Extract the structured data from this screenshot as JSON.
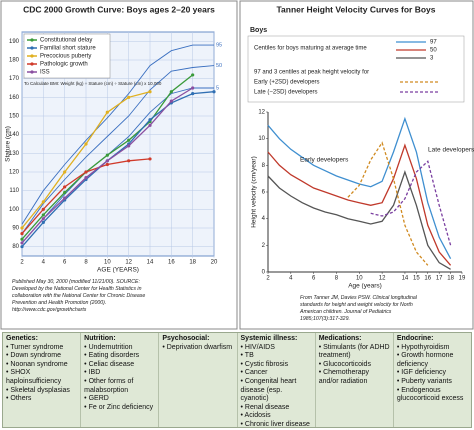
{
  "chart_data": [
    {
      "type": "line",
      "title": "CDC 2000 Growth Curve: Boys ages 2–20 years",
      "x_label": "AGE (YEARS)",
      "y_label": "Stature (cm)",
      "note": "To Calculate BMI: Weight (kg) ÷ Stature (cm) ÷ Stature (cm) x 10,000",
      "source": "Published May 30, 2000 (modified 11/21/00). SOURCE: Developed by the National Center for Health Statistics in collaboration with the National Center for Chronic Disease Prevention and Health Promotion (2000). http://www.cdc.gov/growthcharts",
      "x": [
        2,
        4,
        6,
        8,
        10,
        12,
        14,
        16,
        18,
        20
      ],
      "xlim": [
        2,
        20
      ],
      "xticks": [
        2,
        4,
        6,
        8,
        10,
        12,
        14,
        16,
        18,
        20
      ],
      "ylim": [
        75,
        195
      ],
      "yticks": [
        80,
        90,
        100,
        110,
        120,
        130,
        140,
        150,
        160,
        170,
        180,
        190
      ],
      "grid": true,
      "legend": "upper-left",
      "percentiles": [
        {
          "name": "95",
          "color": "#3a6fc0",
          "values": [
            92,
            110,
            124,
            137,
            149,
            162,
            177,
            185,
            188,
            188
          ]
        },
        {
          "name": "50",
          "color": "#3a6fc0",
          "values": [
            87,
            103,
            116,
            128,
            139,
            150,
            164,
            174,
            176,
            177
          ]
        },
        {
          "name": "5",
          "color": "#3a6fc0",
          "values": [
            82,
            95,
            108,
            120,
            129,
            139,
            152,
            162,
            165,
            165
          ]
        }
      ],
      "series": [
        {
          "name": "Constitutional delay",
          "color": "#3a9a3a",
          "values": [
            84,
            97,
            109,
            120,
            129,
            137,
            147,
            163,
            172,
            null
          ]
        },
        {
          "name": "Familial short stature",
          "color": "#2f6fb3",
          "values": [
            80,
            93,
            105,
            116,
            126,
            135,
            148,
            157,
            162,
            163
          ]
        },
        {
          "name": "Precocious puberty",
          "color": "#e0b020",
          "values": [
            90,
            104,
            120,
            135,
            152,
            160,
            163,
            null,
            null,
            null
          ]
        },
        {
          "name": "Pathologic growth",
          "color": "#d03a2a",
          "values": [
            87,
            100,
            112,
            120,
            124,
            126,
            127,
            null,
            null,
            null
          ]
        },
        {
          "name": "ISS",
          "color": "#8a4fa0",
          "values": [
            82,
            95,
            106,
            117,
            126,
            134,
            145,
            158,
            165,
            null
          ]
        }
      ]
    },
    {
      "type": "line",
      "title": "Tanner Height Velocity Curves for Boys",
      "subtitle": "Boys",
      "x_label": "Age (years)",
      "y_label": "Height velocity (cm/year)",
      "legend_notes": [
        "Centiles for boys maturing at average time",
        "97 and 3 centiles at peak height velocity for"
      ],
      "annotations": [
        "Early developers",
        "Late developers"
      ],
      "source": "From Tanner JM, Davies PSW. Clinical longitudinal standards for height and weight velocity for North American children. Journal of Pediatrics 1985;107(3):317-329.",
      "x": [
        2,
        3,
        4,
        5,
        6,
        7,
        8,
        9,
        10,
        11,
        12,
        13,
        14,
        15,
        16,
        17,
        18
      ],
      "xlim": [
        2,
        19
      ],
      "xticks": [
        2,
        4,
        6,
        8,
        10,
        12,
        14,
        15,
        16,
        17,
        18,
        19
      ],
      "ylim": [
        0,
        12
      ],
      "yticks": [
        0,
        2,
        4,
        6,
        8,
        10,
        12
      ],
      "grid": false,
      "legend": "upper-right",
      "series": [
        {
          "name": "97",
          "color": "#3f8fd0",
          "values": [
            11,
            10,
            9.2,
            8.6,
            8,
            7.6,
            7.2,
            6.9,
            6.6,
            6.4,
            6.8,
            9,
            11.5,
            9,
            5.2,
            2.6,
            1
          ]
        },
        {
          "name": "50",
          "color": "#c0392b",
          "values": [
            9,
            8,
            7.3,
            6.8,
            6.3,
            6,
            5.7,
            5.4,
            5.2,
            5,
            5.2,
            7,
            9.5,
            7,
            3.5,
            1.5,
            0.5
          ]
        },
        {
          "name": "3",
          "color": "#555555",
          "values": [
            7.2,
            6.3,
            5.7,
            5.2,
            4.8,
            4.5,
            4.3,
            4,
            3.8,
            3.6,
            3.8,
            5,
            7.5,
            5,
            2,
            0.7,
            0.2
          ]
        },
        {
          "name": "Early (+2SD) developers",
          "color": "#d08a20",
          "values": [
            null,
            null,
            null,
            null,
            null,
            null,
            null,
            5.6,
            6.5,
            8.4,
            9.7,
            7,
            3.5,
            1.5,
            0.5,
            null,
            null
          ]
        },
        {
          "name": "Late (−2SD) developers",
          "color": "#7a3fa0",
          "values": [
            null,
            null,
            null,
            null,
            null,
            null,
            null,
            null,
            null,
            4.4,
            4.2,
            4.5,
            5.5,
            7.5,
            8.3,
            5,
            2
          ]
        }
      ]
    }
  ],
  "table": {
    "columns": [
      {
        "header": "Genetics:",
        "items": [
          "Turner syndrome",
          "Down syndrome",
          "Noonan syndrome",
          "SHOX haploinsufficiency",
          "Skeletal dysplasias",
          "Others"
        ]
      },
      {
        "header": "Nutrition:",
        "items": [
          "Undernutrition",
          "Eating disorders",
          "Celiac disease",
          "IBD",
          "Other forms of malabsorption",
          "GERD",
          "Fe or Zinc deficiency"
        ]
      },
      {
        "header": "Psychosocial:",
        "items": [
          "Deprivation dwarfism"
        ]
      },
      {
        "header": "Systemic illness:",
        "items": [
          "HIV/AIDS",
          "TB",
          "Cystic fibrosis",
          "Cancer",
          "Congenital heart disease (esp. cyanotic)",
          "Renal disease",
          "Acidosis",
          "Chronic liver disease"
        ]
      },
      {
        "header": "Medications:",
        "items": [
          "Stimulants (for ADHD treatment)",
          "Glucocorticoids",
          "Chemotherapy and/or radiation"
        ]
      },
      {
        "header": "Endocrine:",
        "items": [
          "Hypothyroidism",
          "Growth hormone deficiency",
          "IGF deficiency",
          "Puberty variants",
          "Endogenous glucocorticoid excess"
        ]
      }
    ]
  }
}
